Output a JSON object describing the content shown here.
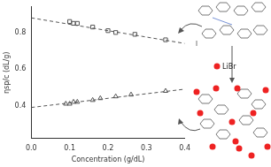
{
  "chart_data": {
    "type": "scatter",
    "x_label": "Concentration (g/dL)",
    "y_label": "ηsp/c (dL/g)",
    "annotations": [
      "LiBr"
    ],
    "xlim": [
      0,
      0.4
    ],
    "xticks": [
      {
        "value": 0,
        "label": "0.0"
      },
      0.1,
      0.2,
      0.3,
      0.4
    ],
    "ylim": [
      0.22,
      0.94
    ],
    "yticks": [
      0.4,
      0.6,
      0.8
    ],
    "grid": false,
    "series": [
      {
        "type": "scatter",
        "marker": "square",
        "color": "#555555",
        "x": [
          0.1,
          0.11,
          0.12,
          0.16,
          0.2,
          0.22,
          0.27,
          0.35
        ],
        "values": [
          0.86,
          0.85,
          0.85,
          0.83,
          0.81,
          0.8,
          0.79,
          0.76
        ]
      },
      {
        "type": "line",
        "line_style": "dashed",
        "color": "#555555",
        "x": [
          0,
          0.4
        ],
        "values": [
          0.88,
          0.74
        ]
      },
      {
        "type": "scatter",
        "marker": "triangle",
        "color": "#555555",
        "x": [
          0.09,
          0.1,
          0.11,
          0.12,
          0.16,
          0.18,
          0.22,
          0.26,
          0.35
        ],
        "values": [
          0.41,
          0.41,
          0.42,
          0.42,
          0.43,
          0.44,
          0.45,
          0.46,
          0.48
        ]
      },
      {
        "type": "line",
        "line_style": "dashed",
        "color": "#555555",
        "x": [
          0,
          0.4
        ],
        "values": [
          0.39,
          0.49
        ]
      }
    ]
  }
}
